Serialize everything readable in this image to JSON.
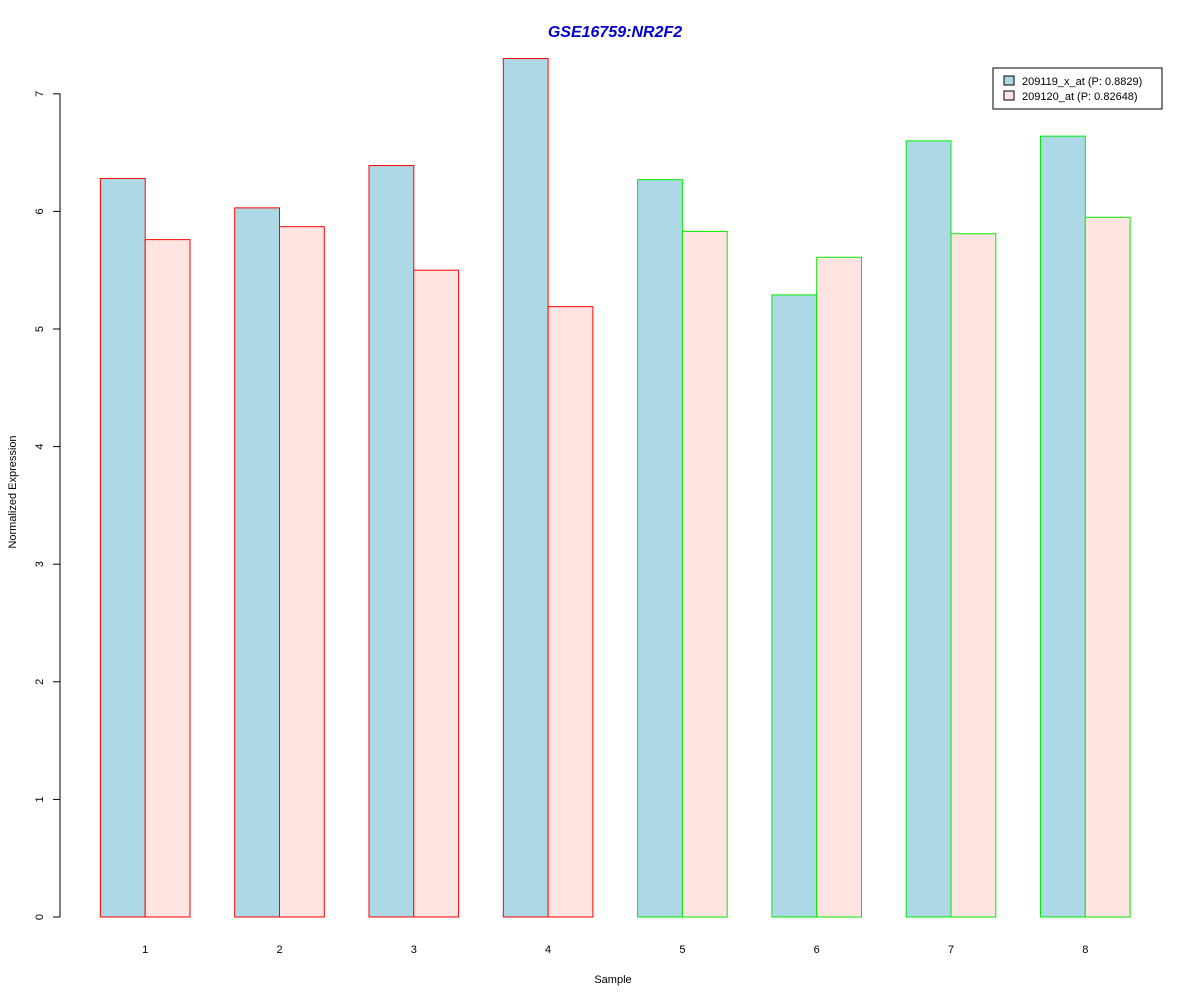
{
  "chart_data": {
    "type": "bar",
    "title": "GSE16759:NR2F2",
    "xlabel": "Sample",
    "ylabel": "Normalized Expression",
    "categories": [
      "1",
      "2",
      "3",
      "4",
      "5",
      "6",
      "7",
      "8"
    ],
    "yticks": [
      "0",
      "1",
      "2",
      "3",
      "4",
      "5",
      "6",
      "7"
    ],
    "ylim": [
      0,
      7.3
    ],
    "series": [
      {
        "name": "209119_x_at (P: 0.8829)",
        "fill": "#add8e6",
        "values": [
          6.28,
          6.03,
          6.39,
          7.3,
          6.27,
          5.29,
          6.6,
          6.64
        ]
      },
      {
        "name": "209120_at (P: 0.82648)",
        "fill": "#ffe4e1",
        "values": [
          5.76,
          5.87,
          5.5,
          5.19,
          5.83,
          5.61,
          5.81,
          5.95
        ]
      }
    ],
    "group_border_colors": [
      "#ff0000",
      "#ff0000",
      "#ff0000",
      "#ff0000",
      "#00ee00",
      "#00ee00",
      "#00ee00",
      "#00ee00"
    ],
    "title_color": "#0000cd",
    "legend_position": "top-right",
    "grid": false
  }
}
